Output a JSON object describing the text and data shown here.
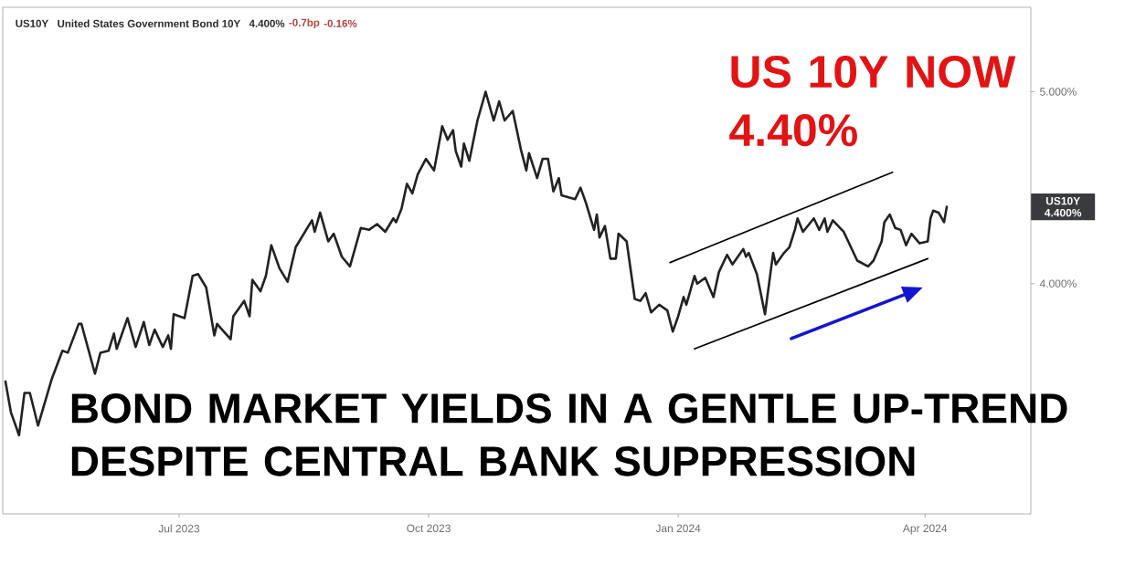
{
  "chart_data": {
    "type": "line",
    "title": "BOND MARKET YIELDS IN A GENTLE UP-TREND DESPITE CENTRAL BANK SUPPRESSION",
    "annotations": [
      "US10Y",
      "United States Government Bond 10Y",
      "4.400%",
      "-0.7bp",
      "-0.16%",
      "US 10Y NOW 4.40%",
      "US10Y 4.400%"
    ],
    "x": [
      "2023-04-28",
      "2023-04-30",
      "2023-05-03",
      "2023-05-05",
      "2023-05-07",
      "2023-05-10",
      "2023-05-15",
      "2023-05-19",
      "2023-05-21",
      "2023-05-25",
      "2023-05-26",
      "2023-05-31",
      "2023-06-02",
      "2023-06-05",
      "2023-06-07",
      "2023-06-08",
      "2023-06-12",
      "2023-06-15",
      "2023-06-18",
      "2023-06-20",
      "2023-06-22",
      "2023-06-25",
      "2023-06-27",
      "2023-06-28",
      "2023-06-29",
      "2023-07-03",
      "2023-07-06",
      "2023-07-08",
      "2023-07-11",
      "2023-07-14",
      "2023-07-15",
      "2023-07-20",
      "2023-07-21",
      "2023-07-25",
      "2023-07-27",
      "2023-07-28",
      "2023-07-31",
      "2023-08-02",
      "2023-08-04",
      "2023-08-07",
      "2023-08-10",
      "2023-08-13",
      "2023-08-19",
      "2023-08-20",
      "2023-08-22",
      "2023-08-25",
      "2023-08-27",
      "2023-08-30",
      "2023-09-02",
      "2023-09-06",
      "2023-09-09",
      "2023-09-12",
      "2023-09-15",
      "2023-09-18",
      "2023-09-19",
      "2023-09-21",
      "2023-09-23",
      "2023-09-25",
      "2023-09-27",
      "2023-09-30",
      "2023-10-03",
      "2023-10-06",
      "2023-10-08",
      "2023-10-10",
      "2023-10-11",
      "2023-10-13",
      "2023-10-14",
      "2023-10-16",
      "2023-10-19",
      "2023-10-22",
      "2023-10-25",
      "2023-10-27",
      "2023-10-29",
      "2023-11-01",
      "2023-11-04",
      "2023-11-06",
      "2023-11-07",
      "2023-11-10",
      "2023-11-12",
      "2023-11-14",
      "2023-11-16",
      "2023-11-18",
      "2023-11-19",
      "2023-11-24",
      "2023-11-26",
      "2023-11-28",
      "2023-12-01",
      "2023-12-02",
      "2023-12-03",
      "2023-12-05",
      "2023-12-07",
      "2023-12-09",
      "2023-12-10",
      "2023-12-13",
      "2023-12-16",
      "2023-12-18",
      "2023-12-20",
      "2023-12-22",
      "2023-12-25",
      "2023-12-28",
      "2023-12-30",
      "2024-01-01",
      "2024-01-03",
      "2024-01-04",
      "2024-01-07",
      "2024-01-08",
      "2024-01-11",
      "2024-01-14",
      "2024-01-16",
      "2024-01-19",
      "2024-01-21",
      "2024-01-25",
      "2024-01-26",
      "2024-01-27",
      "2024-01-30",
      "2024-02-02",
      "2024-02-05",
      "2024-02-06",
      "2024-02-09",
      "2024-02-11",
      "2024-02-13",
      "2024-02-14",
      "2024-02-16",
      "2024-02-20",
      "2024-02-22",
      "2024-02-24",
      "2024-02-25",
      "2024-02-27",
      "2024-03-02",
      "2024-03-04",
      "2024-03-07",
      "2024-03-11",
      "2024-03-13",
      "2024-03-16",
      "2024-03-17",
      "2024-03-19",
      "2024-03-21",
      "2024-03-23",
      "2024-03-25",
      "2024-03-27",
      "2024-03-30",
      "2024-04-02",
      "2024-04-03",
      "2024-04-04",
      "2024-04-06",
      "2024-04-08",
      "2024-04-09"
    ],
    "series": [
      {
        "color": "#222222",
        "values": [
          3.49,
          3.33,
          3.21,
          3.43,
          3.43,
          3.26,
          3.5,
          3.65,
          3.64,
          3.79,
          3.79,
          3.53,
          3.64,
          3.65,
          3.74,
          3.66,
          3.82,
          3.67,
          3.8,
          3.68,
          3.76,
          3.67,
          3.73,
          3.66,
          3.84,
          3.82,
          4.04,
          4.05,
          3.98,
          3.73,
          3.79,
          3.71,
          3.83,
          3.91,
          3.83,
          4.02,
          3.96,
          4.04,
          4.2,
          4.08,
          4.01,
          4.19,
          4.33,
          4.27,
          4.37,
          4.22,
          4.26,
          4.14,
          4.09,
          4.29,
          4.28,
          4.31,
          4.27,
          4.34,
          4.32,
          4.39,
          4.52,
          4.47,
          4.57,
          4.65,
          4.59,
          4.82,
          4.75,
          4.8,
          4.69,
          4.61,
          4.73,
          4.64,
          4.85,
          5.0,
          4.85,
          4.95,
          4.85,
          4.9,
          4.7,
          4.59,
          4.68,
          4.55,
          4.65,
          4.65,
          4.48,
          4.55,
          4.46,
          4.44,
          4.5,
          4.42,
          4.28,
          4.36,
          4.24,
          4.3,
          4.13,
          4.13,
          4.26,
          4.22,
          3.92,
          3.91,
          3.95,
          3.85,
          3.89,
          3.86,
          3.75,
          3.83,
          3.93,
          3.89,
          4.04,
          4.0,
          4.03,
          3.93,
          4.06,
          4.15,
          4.1,
          4.18,
          4.14,
          4.16,
          4.05,
          3.84,
          4.16,
          4.1,
          4.16,
          4.19,
          4.28,
          4.34,
          4.27,
          4.34,
          4.28,
          4.34,
          4.27,
          4.33,
          4.27,
          4.21,
          4.12,
          4.09,
          4.12,
          4.22,
          4.32,
          4.36,
          4.29,
          4.28,
          4.2,
          4.26,
          4.21,
          4.22,
          4.34,
          4.38,
          4.37,
          4.32,
          4.4
        ]
      },
      {
        "type": "line",
        "color": "#000000",
        "x": [
          "2023-12-29",
          "2024-03-20"
        ],
        "values": [
          4.11,
          4.58
        ]
      },
      {
        "type": "line",
        "color": "#000000",
        "x": [
          "2024-01-07",
          "2024-04-02"
        ],
        "values": [
          3.66,
          4.13
        ]
      }
    ],
    "xlim": [
      "2023-04-27",
      "2024-05-10"
    ],
    "ylim": [
      2.8,
      5.44
    ],
    "xticks": [
      {
        "value": "2023-07-01",
        "label": "Jul 2023"
      },
      {
        "value": "2023-10-01",
        "label": "Oct 2023"
      },
      {
        "value": "2024-01-01",
        "label": "Jan 2024"
      },
      {
        "value": "2024-04-01",
        "label": "Apr 2024"
      }
    ],
    "yticks": [
      {
        "value": 4,
        "label": "4.000%"
      },
      {
        "value": 5,
        "label": "5.000%"
      }
    ]
  }
}
